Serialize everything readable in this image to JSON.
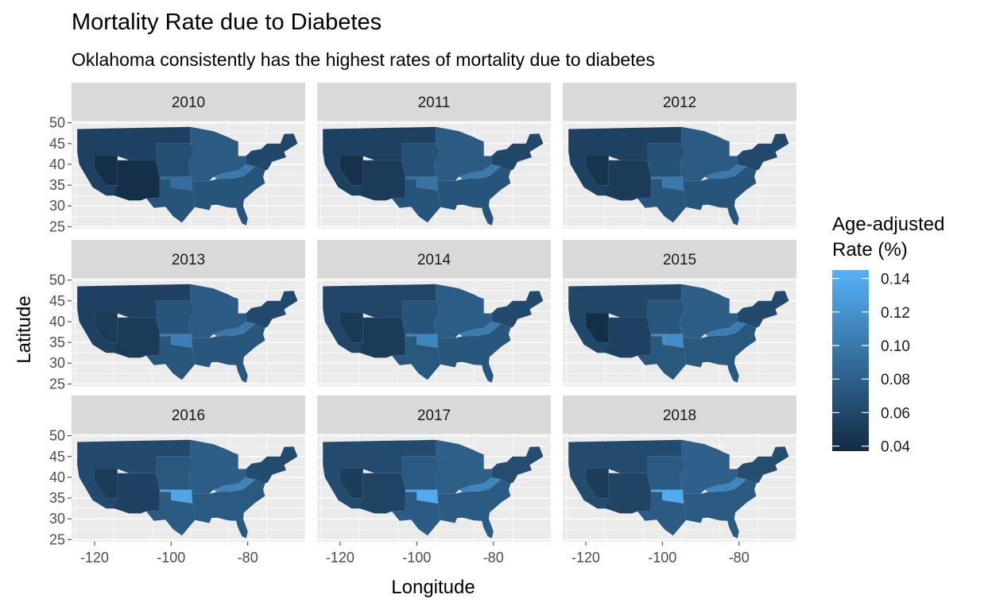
{
  "title": "Mortality Rate due to Diabetes",
  "subtitle": "Oklahoma consistently has the highest rates of mortality due to diabetes",
  "colors": {
    "panel_background": "#ebebeb",
    "grid": "#ffffff",
    "strip": "#d9d9d9",
    "low": "#132b43",
    "high": "#56b1f7"
  },
  "chart_data": {
    "type": "choropleth-map",
    "facets": [
      "2010",
      "2011",
      "2012",
      "2013",
      "2014",
      "2015",
      "2016",
      "2017",
      "2018"
    ],
    "xlabel": "Longitude",
    "ylabel": "Latitude",
    "x_ticks": [
      "-120",
      "-100",
      "-80"
    ],
    "x_tick_values": [
      -120,
      -100,
      -80
    ],
    "y_ticks": [
      "25",
      "30",
      "35",
      "40",
      "45",
      "50"
    ],
    "y_tick_values": [
      25,
      30,
      35,
      40,
      45,
      50
    ],
    "xlim": [
      -126,
      -65
    ],
    "ylim": [
      24.5,
      50.5
    ],
    "legend": {
      "title_lines": [
        "Age-adjusted",
        "Rate (%)"
      ],
      "labels": [
        "0.14",
        "0.12",
        "0.10",
        "0.08",
        "0.06",
        "0.04"
      ],
      "values": [
        0.14,
        0.12,
        0.1,
        0.08,
        0.06,
        0.04
      ],
      "range": [
        0.037,
        0.145
      ],
      "position": "right"
    },
    "approx_rates": {
      "West": [
        0.055,
        0.055,
        0.055,
        0.055,
        0.058,
        0.06,
        0.062,
        0.063,
        0.063
      ],
      "Nevada": [
        0.04,
        0.042,
        0.045,
        0.05,
        0.048,
        0.04,
        0.05,
        0.052,
        0.052
      ],
      "Southwest": [
        0.04,
        0.05,
        0.05,
        0.05,
        0.05,
        0.055,
        0.055,
        0.056,
        0.057
      ],
      "Plains": [
        0.065,
        0.068,
        0.068,
        0.07,
        0.07,
        0.072,
        0.073,
        0.074,
        0.074
      ],
      "Oklahoma": [
        0.09,
        0.095,
        0.1,
        0.105,
        0.11,
        0.115,
        0.135,
        0.14,
        0.14
      ],
      "Texas": [
        0.07,
        0.07,
        0.072,
        0.072,
        0.073,
        0.073,
        0.075,
        0.076,
        0.076
      ],
      "Midwest": [
        0.075,
        0.075,
        0.076,
        0.076,
        0.077,
        0.078,
        0.078,
        0.079,
        0.08
      ],
      "Kentucky/WV": [
        0.1,
        0.1,
        0.1,
        0.1,
        0.102,
        0.103,
        0.108,
        0.11,
        0.11
      ],
      "Southeast": [
        0.07,
        0.07,
        0.07,
        0.072,
        0.072,
        0.073,
        0.074,
        0.075,
        0.075
      ],
      "Northeast": [
        0.06,
        0.06,
        0.061,
        0.061,
        0.062,
        0.062,
        0.063,
        0.064,
        0.064
      ]
    }
  }
}
